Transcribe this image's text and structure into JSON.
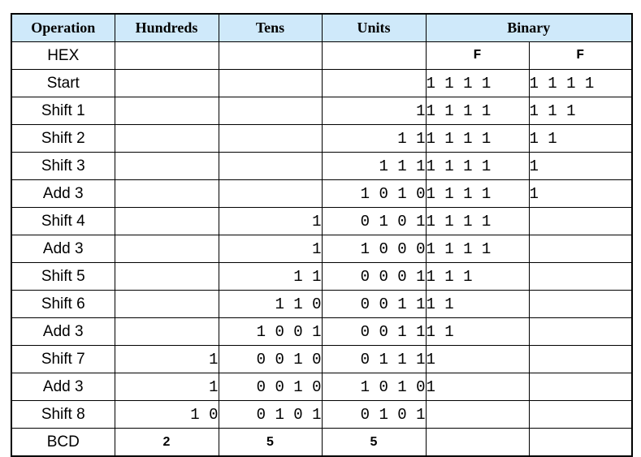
{
  "headers": {
    "operation": "Operation",
    "hundreds": "Hundreds",
    "tens": "Tens",
    "units": "Units",
    "binary": "Binary"
  },
  "rows": [
    {
      "op": "HEX",
      "hundreds": "",
      "tens": "",
      "units": "",
      "bin_hi": "F",
      "bin_lo": "F"
    },
    {
      "op": "Start",
      "hundreds": "",
      "tens": "",
      "units": "",
      "bin_hi": "1 1 1 1",
      "bin_lo": "1 1 1 1"
    },
    {
      "op": "Shift 1",
      "hundreds": "",
      "tens": "",
      "units": "1",
      "bin_hi": "1 1 1 1",
      "bin_lo": "1 1 1"
    },
    {
      "op": "Shift 2",
      "hundreds": "",
      "tens": "",
      "units": "1 1",
      "bin_hi": "1 1 1 1",
      "bin_lo": "1 1"
    },
    {
      "op": "Shift 3",
      "hundreds": "",
      "tens": "",
      "units": "1 1 1",
      "bin_hi": "1 1 1 1",
      "bin_lo": "1"
    },
    {
      "op": "Add 3",
      "hundreds": "",
      "tens": "",
      "units": "1 0 1 0",
      "bin_hi": "1 1 1 1",
      "bin_lo": "1"
    },
    {
      "op": "Shift 4",
      "hundreds": "",
      "tens": "1",
      "units": "0 1 0 1",
      "bin_hi": "1 1 1 1",
      "bin_lo": ""
    },
    {
      "op": "Add 3",
      "hundreds": "",
      "tens": "1",
      "units": "1 0 0 0",
      "bin_hi": "1 1 1 1",
      "bin_lo": ""
    },
    {
      "op": "Shift 5",
      "hundreds": "",
      "tens": "1 1",
      "units": "0 0 0 1",
      "bin_hi": "1 1 1",
      "bin_lo": ""
    },
    {
      "op": "Shift 6",
      "hundreds": "",
      "tens": "1 1 0",
      "units": "0 0 1 1",
      "bin_hi": "1 1",
      "bin_lo": ""
    },
    {
      "op": "Add 3",
      "hundreds": "",
      "tens": "1 0 0 1",
      "units": "0 0 1 1",
      "bin_hi": "1 1",
      "bin_lo": ""
    },
    {
      "op": "Shift 7",
      "hundreds": "1",
      "tens": "0 0 1 0",
      "units": "0 1 1 1",
      "bin_hi": "1",
      "bin_lo": ""
    },
    {
      "op": "Add 3",
      "hundreds": "1",
      "tens": "0 0 1 0",
      "units": "1 0 1 0",
      "bin_hi": "1",
      "bin_lo": ""
    },
    {
      "op": "Shift 8",
      "hundreds": "1 0",
      "tens": "0 1 0 1",
      "units": "0 1 0 1",
      "bin_hi": "",
      "bin_lo": ""
    },
    {
      "op": "BCD",
      "hundreds": "2",
      "tens": "5",
      "units": "5",
      "bin_hi": "",
      "bin_lo": ""
    }
  ]
}
